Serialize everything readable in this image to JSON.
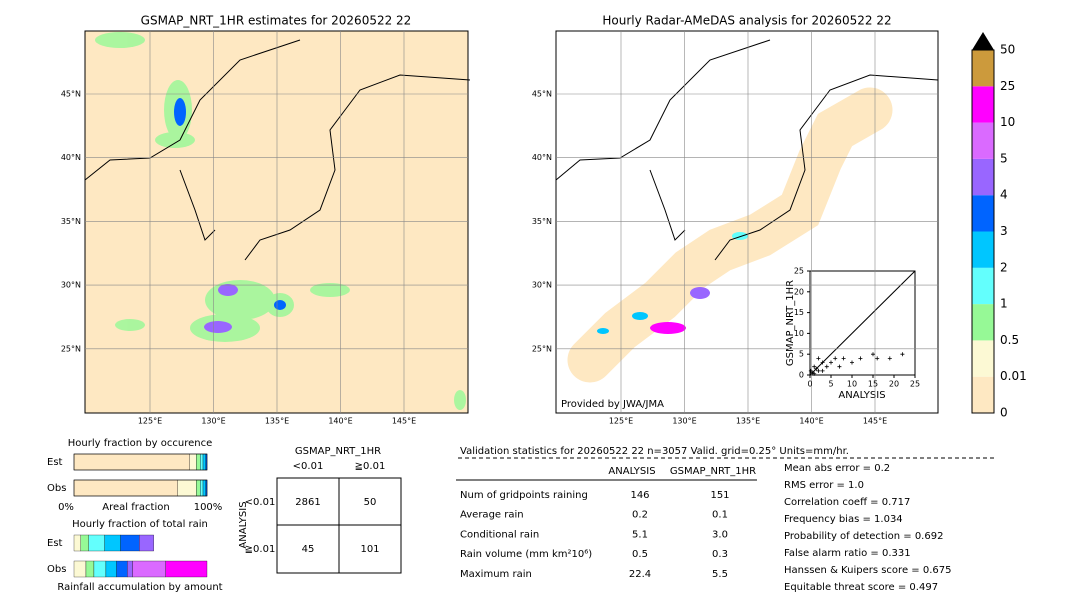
{
  "left_map": {
    "title": "GSMAP_NRT_1HR estimates for 20260522 22",
    "lat_labels": [
      "45°N",
      "40°N",
      "35°N",
      "30°N",
      "25°N"
    ],
    "lon_labels": [
      "125°E",
      "130°E",
      "135°E",
      "140°E",
      "145°E"
    ]
  },
  "right_map": {
    "title": "Hourly Radar-AMeDAS analysis for 20260522 22",
    "lat_labels": [
      "45°N",
      "40°N",
      "35°N",
      "30°N",
      "25°N"
    ],
    "lon_labels": [
      "125°E",
      "130°E",
      "135°E",
      "140°E",
      "145°E"
    ],
    "credit": "Provided by JWA/JMA"
  },
  "scatter": {
    "type": "scatter",
    "xlabel": "ANALYSIS",
    "ylabel": "GSMAP_NRT_1HR",
    "xlim": [
      0,
      25
    ],
    "ylim": [
      0,
      25
    ],
    "xticks": [
      0,
      5,
      10,
      15,
      20,
      25
    ],
    "yticks": [
      0,
      5,
      10,
      15,
      20,
      25
    ],
    "x": [
      0.5,
      1,
      2,
      3,
      1,
      4,
      5,
      6,
      8,
      10,
      12,
      15,
      16,
      19,
      22,
      2,
      0.2,
      7,
      3,
      1.5
    ],
    "y": [
      0.5,
      2,
      1,
      3,
      0.3,
      2,
      3,
      4,
      4,
      3,
      4,
      5,
      4,
      4,
      5,
      4,
      1,
      2,
      1,
      1.5
    ]
  },
  "colorbar": {
    "labels": [
      "0",
      "0.01",
      "0.5",
      "1",
      "2",
      "3",
      "4",
      "5",
      "10",
      "25",
      "50"
    ],
    "colors": [
      "#fee8c2",
      "#fcf9d4",
      "#96f996",
      "#63fffd",
      "#00c6ff",
      "#0064ff",
      "#9966ff",
      "#da6aff",
      "#ff00ff",
      "#cc9a3c"
    ]
  },
  "fraction_occurrence": {
    "title": "Hourly fraction by occurence",
    "rows": [
      "Est",
      "Obs"
    ],
    "axis": [
      "0%",
      "Areal fraction",
      "100%"
    ],
    "colors": [
      "#fee8c2",
      "#fcf9d4",
      "#96f996",
      "#63fffd",
      "#00c6ff",
      "#0064ff"
    ],
    "values": [
      [
        87,
        5,
        3,
        2,
        2,
        1
      ],
      [
        78,
        14,
        3,
        2,
        2,
        1
      ]
    ]
  },
  "fraction_rain": {
    "title": "Hourly fraction of total rain",
    "rows": [
      "Est",
      "Obs"
    ],
    "xlabel": "Rainfall accumulation by amount",
    "colors": [
      "#fcf9d4",
      "#96f996",
      "#63fffd",
      "#00c6ff",
      "#0064ff",
      "#9966ff",
      "#da6aff",
      "#ff00ff"
    ],
    "values": [
      [
        5,
        6,
        12,
        12,
        14,
        11,
        0,
        0
      ],
      [
        9,
        6,
        9,
        8,
        8,
        4,
        25,
        31
      ]
    ]
  },
  "contingency": {
    "title": "GSMAP_NRT_1HR",
    "cols": [
      "<0.01",
      "≧0.01"
    ],
    "ylabel": "ANALYSIS",
    "rows": [
      "<0.01",
      "≧0.01"
    ],
    "cells": [
      [
        "2861",
        "50"
      ],
      [
        "45",
        "101"
      ]
    ]
  },
  "validation": {
    "header": "Validation statistics for 20260522 22  n=3057 Valid. grid=0.25° Units=mm/hr.",
    "columns": [
      "ANALYSIS",
      "GSMAP_NRT_1HR"
    ],
    "rows": [
      {
        "label": "Num of gridpoints raining",
        "values": [
          "146",
          "151"
        ]
      },
      {
        "label": "Average rain",
        "values": [
          "0.2",
          "0.1"
        ]
      },
      {
        "label": "Conditional rain",
        "values": [
          "5.1",
          "3.0"
        ]
      },
      {
        "label": "Rain volume (mm km²10⁶)",
        "values": [
          "0.5",
          "0.3"
        ]
      },
      {
        "label": "Maximum rain",
        "values": [
          "22.4",
          "5.5"
        ]
      }
    ],
    "scores": [
      "Mean abs error =    0.2",
      "RMS error =    1.0",
      "Correlation coeff =  0.717",
      "Frequency bias =  1.034",
      "Probability of detection =  0.692",
      "False alarm ratio =  0.331",
      "Hanssen & Kuipers score =  0.675",
      "Equitable threat score =  0.497"
    ]
  }
}
